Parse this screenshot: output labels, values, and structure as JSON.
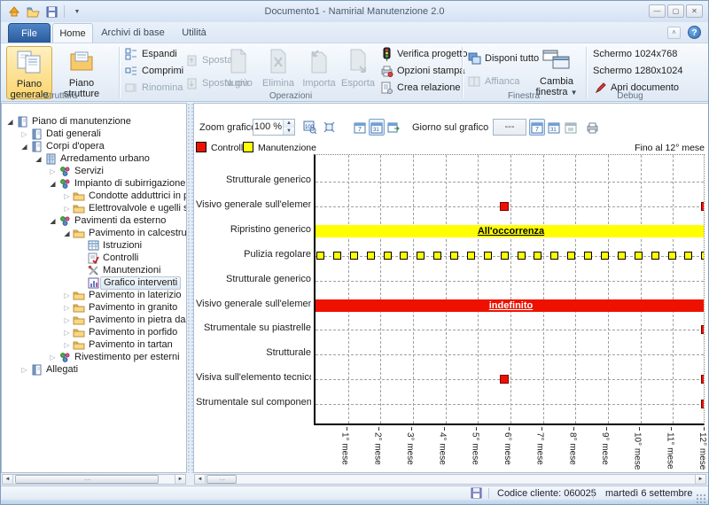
{
  "window": {
    "title": "Documento1 - Namirial Manutenzione 2.0"
  },
  "tabs": [
    {
      "label": "File"
    },
    {
      "label": "Home",
      "selected": true
    },
    {
      "label": "Archivi di base"
    },
    {
      "label": "Utilità"
    }
  ],
  "ribbon": {
    "group_struttura": "Struttura",
    "group_operazioni": "Operazioni",
    "group_finestra": "Finestra",
    "group_debug": "Debug",
    "piano_generale": "Piano generale",
    "piano_strutture": "Piano strutture",
    "espandi": "Espandi",
    "comprimi": "Comprimi",
    "rinomina": "Rinomina",
    "sposta_su": "Sposta su",
    "sposta_giu": "Sposta giù",
    "nuovo": "Nuovo",
    "elimina": "Elimina",
    "importa": "Importa",
    "esporta": "Esporta",
    "verifica_progetto": "Verifica progetto",
    "opzioni_stampa": "Opzioni stampa",
    "crea_relazione": "Crea relazione",
    "disponi_tutto": "Disponi tutto",
    "affianca": "Affianca",
    "cambia_finestra": "Cambia finestra",
    "schermo_1024": "Schermo 1024x768",
    "schermo_1280": "Schermo 1280x1024",
    "apri_documento": "Apri documento"
  },
  "tree": {
    "items": [
      {
        "level": 0,
        "label": "Piano di manutenzione",
        "icon": "book",
        "state": "expanded"
      },
      {
        "level": 1,
        "label": "Dati generali",
        "icon": "book",
        "state": "collapsed"
      },
      {
        "level": 1,
        "label": "Corpi d'opera",
        "icon": "book",
        "state": "expanded"
      },
      {
        "level": 2,
        "label": "Arredamento urbano",
        "icon": "building",
        "state": "expanded"
      },
      {
        "level": 3,
        "label": "Servizi",
        "icon": "tech",
        "state": "collapsed"
      },
      {
        "level": 3,
        "label": "Impianto di subirrigazione",
        "icon": "tech",
        "state": "expanded"
      },
      {
        "level": 4,
        "label": "Condotte adduttrici in polietile",
        "icon": "folder",
        "state": "collapsed"
      },
      {
        "level": 4,
        "label": "Elettrovalvole e ugelli spruzzat",
        "icon": "folder",
        "state": "collapsed"
      },
      {
        "level": 3,
        "label": "Pavimenti da esterno",
        "icon": "tech",
        "state": "expanded"
      },
      {
        "level": 4,
        "label": "Pavimento in calcestruzzo",
        "icon": "folder",
        "state": "expanded"
      },
      {
        "level": 5,
        "label": "Istruzioni",
        "icon": "grid",
        "state": "leaf"
      },
      {
        "level": 5,
        "label": "Controlli",
        "icon": "checkdoc",
        "state": "leaf"
      },
      {
        "level": 5,
        "label": "Manutenzioni",
        "icon": "tools",
        "state": "leaf"
      },
      {
        "level": 5,
        "label": "Grafico interventi",
        "icon": "chart",
        "state": "leaf",
        "selected": true
      },
      {
        "level": 4,
        "label": "Pavimento in laterizio",
        "icon": "folder",
        "state": "collapsed"
      },
      {
        "level": 4,
        "label": "Pavimento in granito",
        "icon": "folder",
        "state": "collapsed"
      },
      {
        "level": 4,
        "label": "Pavimento in pietra da taglio",
        "icon": "folder",
        "state": "collapsed"
      },
      {
        "level": 4,
        "label": "Pavimento in porfido",
        "icon": "folder",
        "state": "collapsed"
      },
      {
        "level": 4,
        "label": "Pavimento in tartan",
        "icon": "folder",
        "state": "collapsed"
      },
      {
        "level": 3,
        "label": "Rivestimento per esterni",
        "icon": "tech",
        "state": "collapsed"
      },
      {
        "level": 1,
        "label": "Allegati",
        "icon": "book",
        "state": "collapsed"
      }
    ]
  },
  "chart_toolbar": {
    "zoom_label": "Zoom grafico",
    "zoom_value": "100 %",
    "giorno_label": "Giorno sul grafico",
    "giorno_value": "---"
  },
  "chart_data": {
    "type": "scatter",
    "title": "Grafico interventi",
    "note_right": "Fino al 12° mese",
    "legend": [
      {
        "label": "Controllo",
        "color": "#ee1100"
      },
      {
        "label": "Manutenzione",
        "color": "#ffff00"
      }
    ],
    "x_axis": {
      "months": 12,
      "tick_labels": [
        "1° mese",
        "2° mese",
        "3° mese",
        "4° mese",
        "5° mese",
        "6° mese",
        "7° mese",
        "8° mese",
        "9° mese",
        "10° mese",
        "11° mese",
        "12° mese"
      ]
    },
    "rows": [
      {
        "label": "Strutturale generico"
      },
      {
        "label": "Visivo generale sull'elemento...",
        "markers": {
          "type": "controllo",
          "months": [
            5.8,
            12
          ]
        }
      },
      {
        "label": "Ripristino generico",
        "bar": {
          "type": "manutenzione",
          "text": "All'occorrenza",
          "from_month": 0,
          "to_month": 12
        }
      },
      {
        "label": "Pulizia regolare",
        "markers": {
          "type": "manutenzione",
          "repeat": {
            "start_month": 0.15,
            "step_month": 0.515,
            "count": 24
          }
        }
      },
      {
        "label": "Strutturale generico"
      },
      {
        "label": "Visivo generale sull'elemento...",
        "bar": {
          "type": "controllo",
          "text": "indefinito",
          "from_month": 0,
          "to_month": 12
        }
      },
      {
        "label": "Strumentale su piastrelle",
        "markers": {
          "type": "controllo",
          "months": [
            12
          ]
        }
      },
      {
        "label": "Strutturale"
      },
      {
        "label": "Visiva sull'elemento tecnico",
        "markers": {
          "type": "controllo",
          "months": [
            5.8,
            12
          ]
        }
      },
      {
        "label": "Strumentale sul componente",
        "markers": {
          "type": "controllo",
          "months": [
            12
          ]
        }
      }
    ]
  },
  "status_bar": {
    "codice_cliente": "Codice cliente: 060025",
    "date": "martedì 6 settembre 2011"
  }
}
